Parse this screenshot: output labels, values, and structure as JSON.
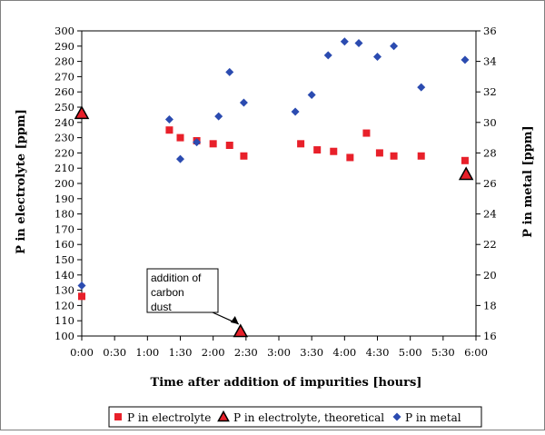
{
  "chart_data": {
    "type": "scatter",
    "title": "",
    "xlabel": "Time after addition of impurities [hours]",
    "ylabel_left": "P in electrolyte [ppm]",
    "ylabel_right": "P in metal [ppm]",
    "x_unit": "minutes",
    "xlim": [
      0,
      360
    ],
    "x_ticks": [
      {
        "value": 0,
        "label": "0:00"
      },
      {
        "value": 30,
        "label": "0:30"
      },
      {
        "value": 60,
        "label": "1:00"
      },
      {
        "value": 90,
        "label": "1:30"
      },
      {
        "value": 120,
        "label": "2:00"
      },
      {
        "value": 150,
        "label": "2:30"
      },
      {
        "value": 180,
        "label": "3:00"
      },
      {
        "value": 210,
        "label": "3:30"
      },
      {
        "value": 240,
        "label": "4:00"
      },
      {
        "value": 270,
        "label": "4:30"
      },
      {
        "value": 300,
        "label": "5:00"
      },
      {
        "value": 330,
        "label": "5:30"
      },
      {
        "value": 360,
        "label": "6:00"
      }
    ],
    "ylim_left": [
      100,
      300
    ],
    "y_ticks_left": [
      100,
      110,
      120,
      130,
      140,
      150,
      160,
      170,
      180,
      190,
      200,
      210,
      220,
      230,
      240,
      250,
      260,
      270,
      280,
      290,
      300
    ],
    "ylim_right": [
      16,
      36
    ],
    "y_ticks_right": [
      16,
      18,
      20,
      22,
      24,
      26,
      28,
      30,
      32,
      34,
      36
    ],
    "grid": false,
    "legend_position": "bottom",
    "series": [
      {
        "name": "P in electrolyte",
        "axis": "left",
        "marker": "square",
        "color": "#e8202a",
        "points": [
          [
            0,
            126
          ],
          [
            80,
            235
          ],
          [
            90,
            230
          ],
          [
            105,
            228
          ],
          [
            120,
            226
          ],
          [
            135,
            225
          ],
          [
            148,
            218
          ],
          [
            200,
            226
          ],
          [
            215,
            222
          ],
          [
            230,
            221
          ],
          [
            245,
            217
          ],
          [
            260,
            233
          ],
          [
            272,
            220
          ],
          [
            285,
            218
          ],
          [
            310,
            218
          ],
          [
            350,
            215
          ]
        ]
      },
      {
        "name": "P in electrolyte, theoretical",
        "axis": "left",
        "marker": "triangle",
        "color": "#e8202a",
        "points": [
          [
            0,
            246
          ],
          [
            145,
            103
          ],
          [
            351,
            206
          ]
        ]
      },
      {
        "name": "P in metal",
        "axis": "right",
        "marker": "diamond",
        "color": "#2b4bb0",
        "points": [
          [
            0,
            19.3
          ],
          [
            80,
            30.2
          ],
          [
            90,
            27.6
          ],
          [
            105,
            28.7
          ],
          [
            125,
            30.4
          ],
          [
            135,
            33.3
          ],
          [
            148,
            31.3
          ],
          [
            195,
            30.7
          ],
          [
            210,
            31.8
          ],
          [
            225,
            34.4
          ],
          [
            240,
            35.3
          ],
          [
            253,
            35.2
          ],
          [
            270,
            34.3
          ],
          [
            285,
            35.0
          ],
          [
            310,
            32.3
          ],
          [
            350,
            34.1
          ]
        ]
      }
    ],
    "annotations": [
      {
        "text_lines": [
          "addition of",
          "carbon",
          "dust"
        ],
        "points_to": [
          145,
          103
        ]
      }
    ]
  },
  "colors": {
    "red": "#e8202a",
    "blue": "#2b4bb0",
    "axis": "#000000",
    "frame": "#808080"
  }
}
